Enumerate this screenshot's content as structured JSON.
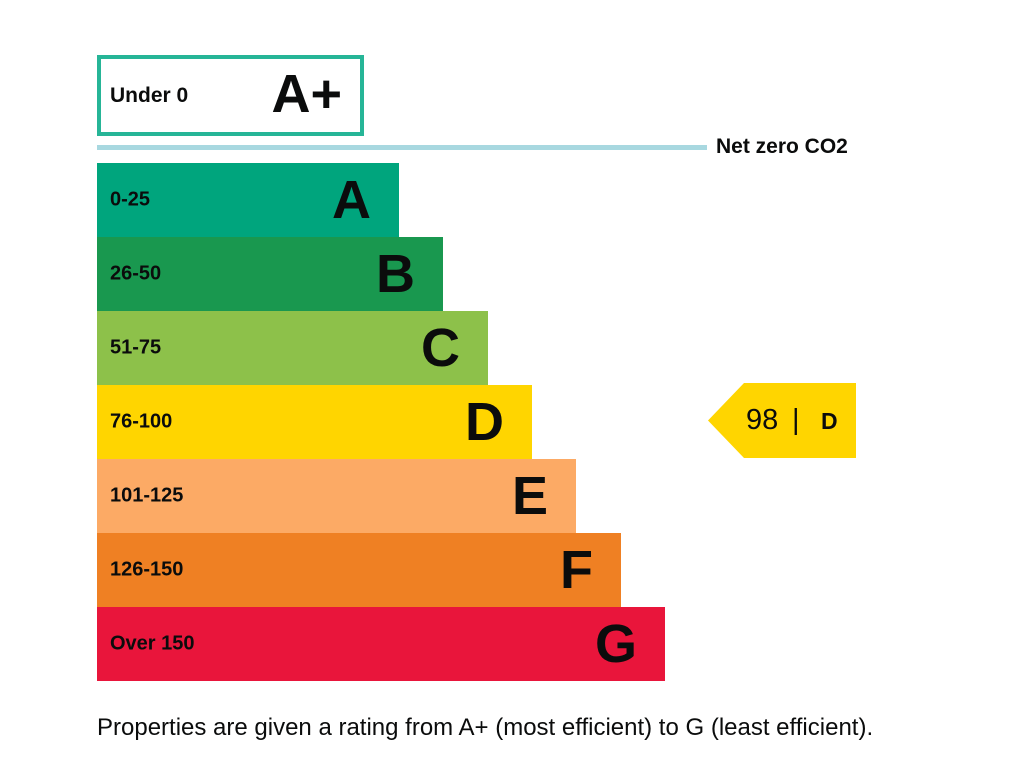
{
  "chart_data": {
    "type": "bar",
    "title": "",
    "aplus": {
      "range": "Under 0",
      "letter": "A+",
      "color": "#26b597"
    },
    "net_zero_label": "Net zero CO2",
    "bands": [
      {
        "range": "0-25",
        "letter": "A",
        "color": "#00a57d"
      },
      {
        "range": "26-50",
        "letter": "B",
        "color": "#19984f"
      },
      {
        "range": "51-75",
        "letter": "C",
        "color": "#8dc14a"
      },
      {
        "range": "76-100",
        "letter": "D",
        "color": "#ffd500"
      },
      {
        "range": "101-125",
        "letter": "E",
        "color": "#fcaa65"
      },
      {
        "range": "126-150",
        "letter": "F",
        "color": "#ef8023"
      },
      {
        "range": "Over 150",
        "letter": "G",
        "color": "#e9153b"
      }
    ],
    "current_rating": {
      "score": "98",
      "separator": "|",
      "letter": "D",
      "color": "#ffd500"
    },
    "caption": "Properties are given a rating from A+ (most efficient) to G (least efficient)."
  }
}
